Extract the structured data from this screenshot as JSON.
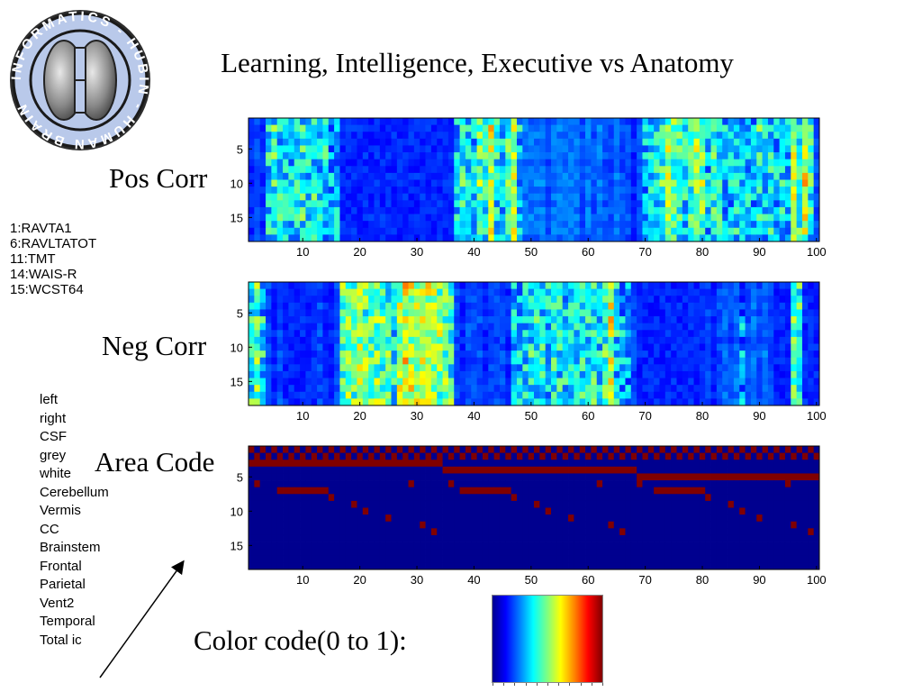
{
  "logo": {
    "text": "INFORMATICS - HUBIN - HUMAN BRAIN",
    "icon": "brain-icon"
  },
  "title": "Learning, Intelligence, Executive vs Anatomy",
  "panel_labels": {
    "pos": "Pos Corr",
    "neg": "Neg Corr",
    "area": "Area Code"
  },
  "test_legend": [
    "1:RAVTA1",
    "6:RAVLTATOT",
    "11:TMT",
    "14:WAIS-R",
    "15:WCST64"
  ],
  "area_legend": [
    "left",
    "right",
    "CSF",
    "grey",
    "white",
    "Cerebellum",
    "Vermis",
    "CC",
    "Brainstem",
    "Frontal",
    "Parietal",
    "Vent2",
    "Temporal",
    "Total ic"
  ],
  "color_code_label": "Color code(0 to 1):",
  "colors": {
    "colormap": "jet",
    "background_low": "#00008f",
    "area_code_on": "#800000"
  },
  "chart_data": [
    {
      "id": "pos",
      "type": "heatmap",
      "title": "",
      "xlabel": "",
      "ylabel": "",
      "x_ticks": [
        10,
        20,
        30,
        40,
        50,
        60,
        70,
        80,
        90,
        100
      ],
      "y_ticks": [
        5,
        10,
        15
      ],
      "n_cols": 100,
      "n_rows": 18,
      "value_range": [
        0,
        1
      ],
      "column_strength": [
        0.05,
        0.1,
        0.05,
        0.3,
        0.35,
        0.3,
        0.3,
        0.25,
        0.3,
        0.35,
        0.3,
        0.35,
        0.25,
        0.3,
        0.2,
        0.25,
        0.05,
        0.05,
        0.05,
        0.05,
        0.05,
        0.05,
        0.05,
        0.05,
        0.05,
        0.05,
        0.05,
        0.05,
        0.05,
        0.05,
        0.05,
        0.05,
        0.05,
        0.05,
        0.05,
        0.05,
        0.25,
        0.35,
        0.3,
        0.25,
        0.45,
        0.35,
        0.55,
        0.3,
        0.25,
        0.4,
        0.55,
        0.25,
        0.15,
        0.15,
        0.15,
        0.15,
        0.1,
        0.15,
        0.15,
        0.15,
        0.15,
        0.15,
        0.1,
        0.15,
        0.1,
        0.15,
        0.1,
        0.1,
        0.15,
        0.1,
        0.1,
        0.05,
        0.1,
        0.25,
        0.3,
        0.3,
        0.4,
        0.55,
        0.45,
        0.35,
        0.3,
        0.4,
        0.5,
        0.45,
        0.25,
        0.35,
        0.3,
        0.25,
        0.25,
        0.3,
        0.3,
        0.25,
        0.25,
        0.35,
        0.25,
        0.3,
        0.25,
        0.3,
        0.25,
        0.55,
        0.35,
        0.6,
        0.35,
        0.1
      ],
      "row_strength": [
        0.85,
        1.0,
        0.95,
        0.9,
        0.95,
        1.0,
        0.85,
        0.9,
        0.95,
        1.0,
        0.9,
        0.95,
        0.85,
        0.95,
        1.0,
        0.9,
        0.95,
        0.8
      ]
    },
    {
      "id": "neg",
      "type": "heatmap",
      "title": "",
      "xlabel": "",
      "ylabel": "",
      "x_ticks": [
        10,
        20,
        30,
        40,
        50,
        60,
        70,
        80,
        90,
        100
      ],
      "y_ticks": [
        5,
        10,
        15
      ],
      "n_cols": 100,
      "n_rows": 18,
      "value_range": [
        0,
        1
      ],
      "column_strength": [
        0.35,
        0.45,
        0.3,
        0.1,
        0.05,
        0.1,
        0.05,
        0.05,
        0.05,
        0.05,
        0.05,
        0.05,
        0.1,
        0.05,
        0.05,
        0.1,
        0.45,
        0.5,
        0.45,
        0.55,
        0.5,
        0.45,
        0.5,
        0.45,
        0.4,
        0.3,
        0.55,
        0.65,
        0.6,
        0.55,
        0.55,
        0.6,
        0.55,
        0.5,
        0.45,
        0.4,
        0.1,
        0.05,
        0.1,
        0.1,
        0.1,
        0.05,
        0.1,
        0.1,
        0.1,
        0.05,
        0.3,
        0.25,
        0.3,
        0.35,
        0.35,
        0.35,
        0.3,
        0.35,
        0.35,
        0.3,
        0.35,
        0.3,
        0.35,
        0.3,
        0.35,
        0.3,
        0.4,
        0.6,
        0.3,
        0.25,
        0.2,
        0.1,
        0.05,
        0.05,
        0.05,
        0.05,
        0.05,
        0.05,
        0.05,
        0.05,
        0.05,
        0.05,
        0.05,
        0.05,
        0.1,
        0.05,
        0.1,
        0.15,
        0.1,
        0.15,
        0.2,
        0.1,
        0.15,
        0.1,
        0.15,
        0.1,
        0.05,
        0.05,
        0.05,
        0.45,
        0.4,
        0.05,
        0.05,
        0.05
      ],
      "row_strength": [
        0.9,
        0.85,
        0.8,
        0.9,
        0.75,
        0.95,
        0.9,
        0.95,
        0.8,
        0.85,
        0.95,
        0.9,
        0.85,
        0.8,
        0.95,
        0.9,
        0.85,
        1.0
      ]
    },
    {
      "id": "area",
      "type": "heatmap",
      "title": "",
      "xlabel": "",
      "ylabel": "",
      "x_ticks": [
        10,
        20,
        30,
        40,
        50,
        60,
        70,
        80,
        90,
        100
      ],
      "y_ticks": [
        5,
        10,
        15
      ],
      "n_cols": 100,
      "n_rows": 18,
      "value_range": [
        0,
        1
      ],
      "binary": true,
      "row_ranges": [
        {
          "row": 1,
          "pattern": "alternate_odd"
        },
        {
          "row": 2,
          "pattern": "alternate_even"
        },
        {
          "row": 3,
          "cols": [
            1,
            34
          ]
        },
        {
          "row": 4,
          "cols": [
            35,
            68
          ]
        },
        {
          "row": 5,
          "cols": [
            69,
            100
          ]
        },
        {
          "row": 6,
          "cols_list": [
            2,
            29,
            36,
            62,
            69,
            95
          ]
        },
        {
          "row": 7,
          "cols": [
            6,
            14
          ]
        },
        {
          "row": 7,
          "cols": [
            38,
            46
          ]
        },
        {
          "row": 7,
          "cols": [
            72,
            80
          ]
        },
        {
          "row": 8,
          "cols_list": [
            15,
            47,
            81
          ]
        },
        {
          "row": 9,
          "cols_list": [
            19,
            51,
            85
          ]
        },
        {
          "row": 10,
          "cols_list": [
            21,
            53,
            87
          ]
        },
        {
          "row": 11,
          "cols_list": [
            25,
            57,
            90
          ]
        },
        {
          "row": 12,
          "cols_list": [
            31,
            64,
            96
          ]
        },
        {
          "row": 13,
          "cols_list": [
            33,
            66,
            99
          ]
        }
      ]
    }
  ]
}
